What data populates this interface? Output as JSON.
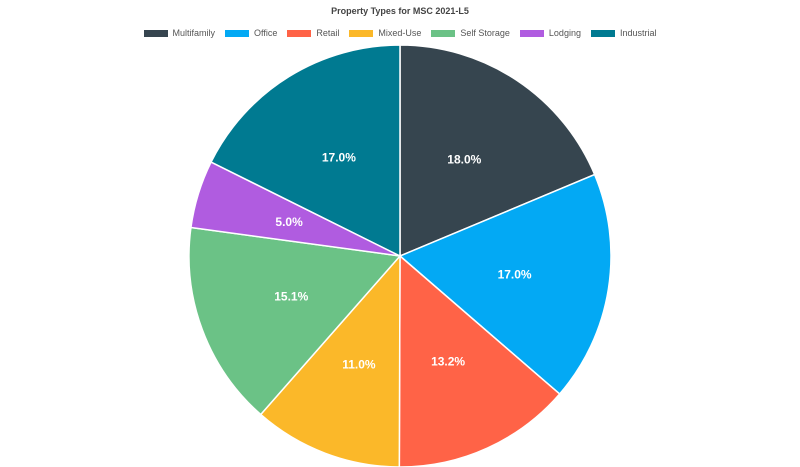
{
  "chart_data": {
    "type": "pie",
    "title": "Property Types for MSC 2021-L5",
    "legend_position": "top",
    "slices": [
      {
        "name": "Multifamily",
        "value": 18.0,
        "label": "18.0%",
        "color": "#36454f"
      },
      {
        "name": "Office",
        "value": 17.0,
        "label": "17.0%",
        "color": "#03a9f4"
      },
      {
        "name": "Retail",
        "value": 13.2,
        "label": "13.2%",
        "color": "#ff6347"
      },
      {
        "name": "Mixed-Use",
        "value": 11.0,
        "label": "11.0%",
        "color": "#fbb829"
      },
      {
        "name": "Self Storage",
        "value": 15.1,
        "label": "15.1%",
        "color": "#6bc286"
      },
      {
        "name": "Lodging",
        "value": 5.0,
        "label": "5.0%",
        "color": "#b05ce0"
      },
      {
        "name": "Industrial",
        "value": 17.0,
        "label": "17.0%",
        "color": "#007a91"
      }
    ]
  }
}
